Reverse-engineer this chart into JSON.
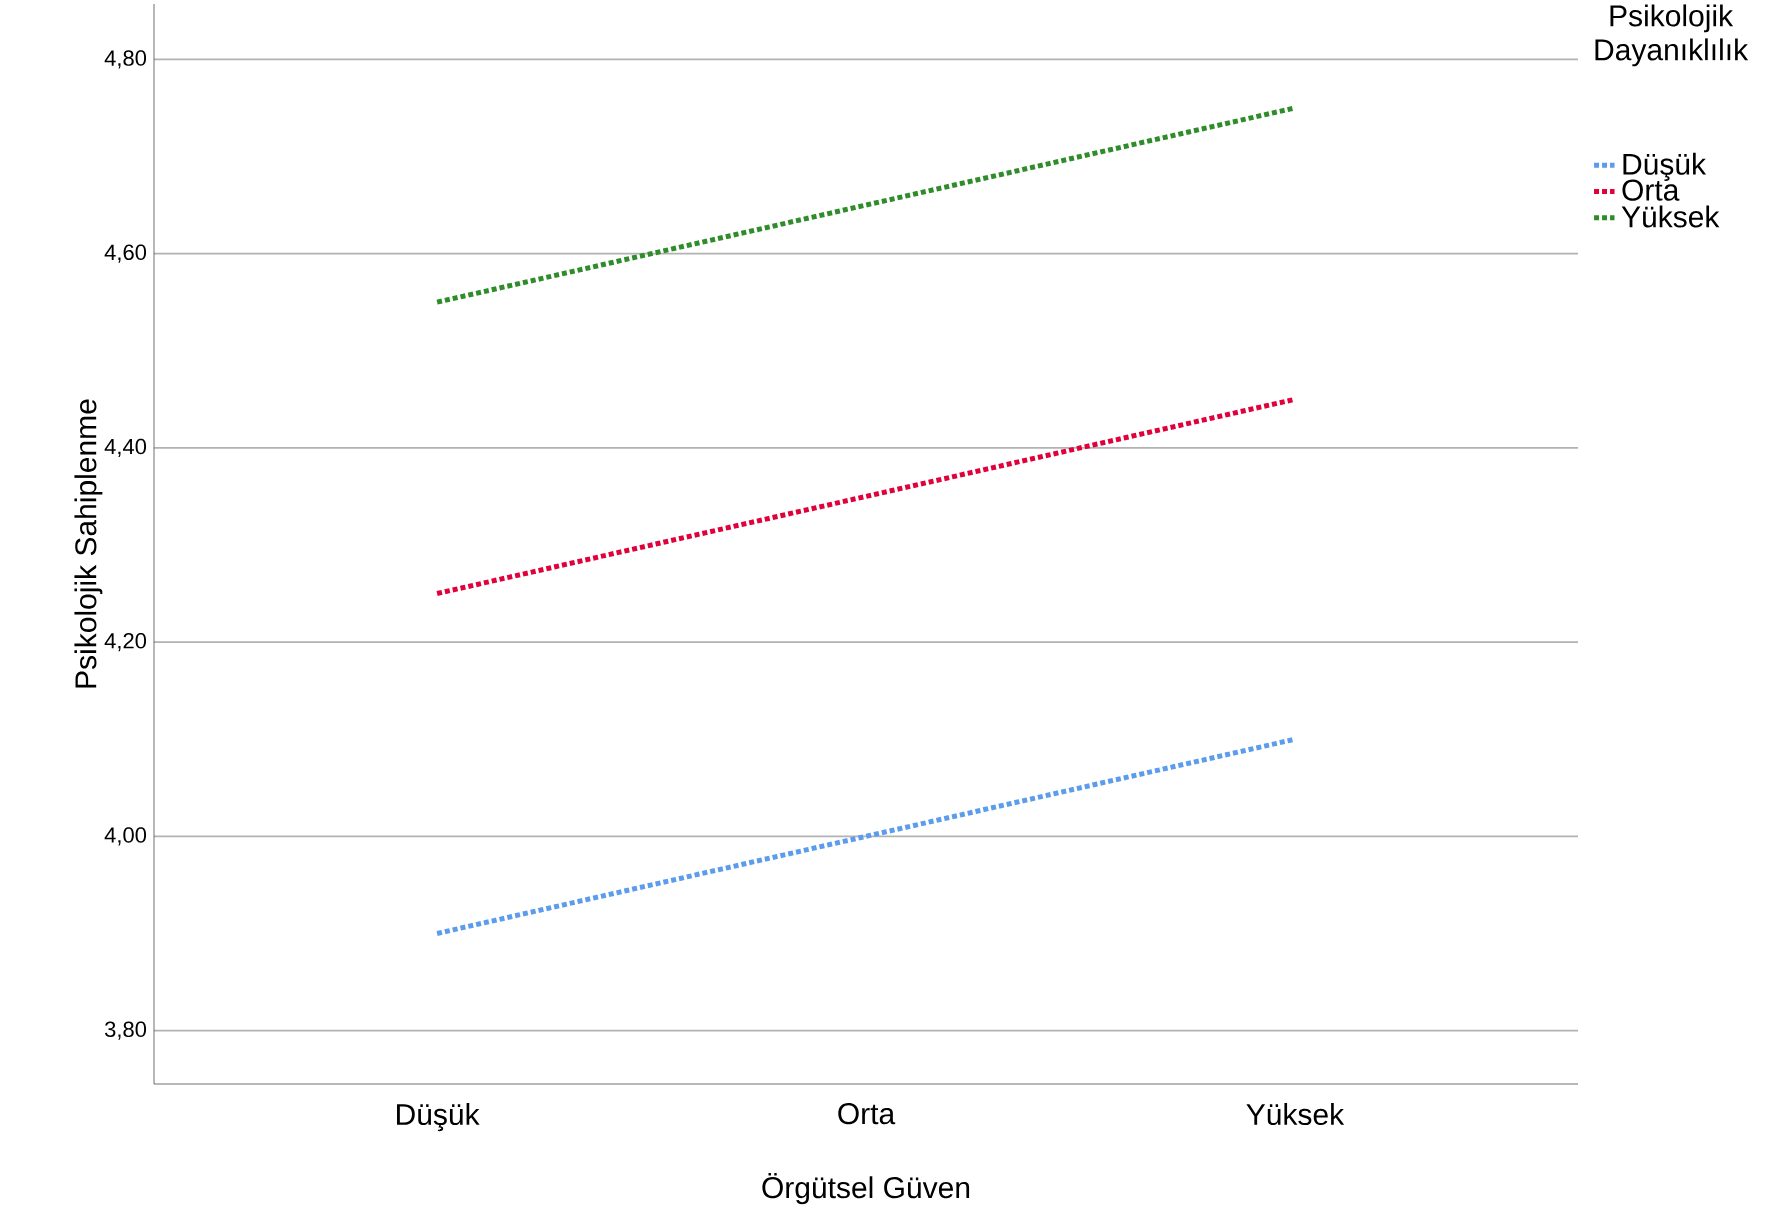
{
  "chart_data": {
    "type": "line",
    "xlabel": "Örgütsel Güven",
    "ylabel": "Psikolojik Sahiplenme",
    "legend_title": "Psikolojik Dayanıklılık",
    "categories": [
      "Düşük",
      "Orta",
      "Yüksek"
    ],
    "series": [
      {
        "name": "Düşük",
        "color": "#5b9cec",
        "values": [
          3.9,
          4.0,
          4.1
        ]
      },
      {
        "name": "Orta",
        "color": "#e0003a",
        "values": [
          4.25,
          4.35,
          4.45
        ]
      },
      {
        "name": "Yüksek",
        "color": "#2f8c2a",
        "values": [
          4.55,
          4.65,
          4.75
        ]
      }
    ],
    "ylim": [
      3.745,
      4.857
    ],
    "yticks": [
      {
        "value": 3.8,
        "label": "3,80"
      },
      {
        "value": 4.0,
        "label": "4,00"
      },
      {
        "value": 4.2,
        "label": "4,20"
      },
      {
        "value": 4.4,
        "label": "4,40"
      },
      {
        "value": 4.6,
        "label": "4,60"
      },
      {
        "value": 4.8,
        "label": "4,80"
      }
    ],
    "grid": "y",
    "legend": "top right",
    "line_style": "dotted",
    "marker": "none"
  }
}
